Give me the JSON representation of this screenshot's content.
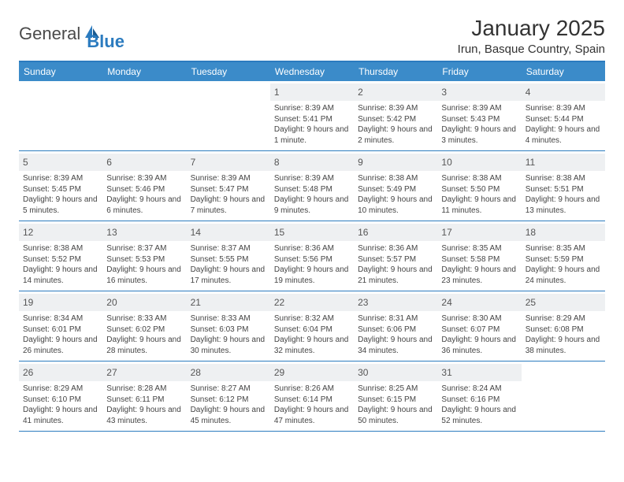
{
  "logo": {
    "general": "General",
    "blue": "Blue"
  },
  "title": "January 2025",
  "location": "Irun, Basque Country, Spain",
  "colors": {
    "header_bg": "#3b8bc9",
    "border": "#2b7bbf",
    "daynum_bg": "#eef0f2",
    "text": "#444444"
  },
  "weekdays": [
    "Sunday",
    "Monday",
    "Tuesday",
    "Wednesday",
    "Thursday",
    "Friday",
    "Saturday"
  ],
  "weeks": [
    [
      {
        "day": "",
        "sunrise": "",
        "sunset": "",
        "daylight": ""
      },
      {
        "day": "",
        "sunrise": "",
        "sunset": "",
        "daylight": ""
      },
      {
        "day": "",
        "sunrise": "",
        "sunset": "",
        "daylight": ""
      },
      {
        "day": "1",
        "sunrise": "Sunrise: 8:39 AM",
        "sunset": "Sunset: 5:41 PM",
        "daylight": "Daylight: 9 hours and 1 minute."
      },
      {
        "day": "2",
        "sunrise": "Sunrise: 8:39 AM",
        "sunset": "Sunset: 5:42 PM",
        "daylight": "Daylight: 9 hours and 2 minutes."
      },
      {
        "day": "3",
        "sunrise": "Sunrise: 8:39 AM",
        "sunset": "Sunset: 5:43 PM",
        "daylight": "Daylight: 9 hours and 3 minutes."
      },
      {
        "day": "4",
        "sunrise": "Sunrise: 8:39 AM",
        "sunset": "Sunset: 5:44 PM",
        "daylight": "Daylight: 9 hours and 4 minutes."
      }
    ],
    [
      {
        "day": "5",
        "sunrise": "Sunrise: 8:39 AM",
        "sunset": "Sunset: 5:45 PM",
        "daylight": "Daylight: 9 hours and 5 minutes."
      },
      {
        "day": "6",
        "sunrise": "Sunrise: 8:39 AM",
        "sunset": "Sunset: 5:46 PM",
        "daylight": "Daylight: 9 hours and 6 minutes."
      },
      {
        "day": "7",
        "sunrise": "Sunrise: 8:39 AM",
        "sunset": "Sunset: 5:47 PM",
        "daylight": "Daylight: 9 hours and 7 minutes."
      },
      {
        "day": "8",
        "sunrise": "Sunrise: 8:39 AM",
        "sunset": "Sunset: 5:48 PM",
        "daylight": "Daylight: 9 hours and 9 minutes."
      },
      {
        "day": "9",
        "sunrise": "Sunrise: 8:38 AM",
        "sunset": "Sunset: 5:49 PM",
        "daylight": "Daylight: 9 hours and 10 minutes."
      },
      {
        "day": "10",
        "sunrise": "Sunrise: 8:38 AM",
        "sunset": "Sunset: 5:50 PM",
        "daylight": "Daylight: 9 hours and 11 minutes."
      },
      {
        "day": "11",
        "sunrise": "Sunrise: 8:38 AM",
        "sunset": "Sunset: 5:51 PM",
        "daylight": "Daylight: 9 hours and 13 minutes."
      }
    ],
    [
      {
        "day": "12",
        "sunrise": "Sunrise: 8:38 AM",
        "sunset": "Sunset: 5:52 PM",
        "daylight": "Daylight: 9 hours and 14 minutes."
      },
      {
        "day": "13",
        "sunrise": "Sunrise: 8:37 AM",
        "sunset": "Sunset: 5:53 PM",
        "daylight": "Daylight: 9 hours and 16 minutes."
      },
      {
        "day": "14",
        "sunrise": "Sunrise: 8:37 AM",
        "sunset": "Sunset: 5:55 PM",
        "daylight": "Daylight: 9 hours and 17 minutes."
      },
      {
        "day": "15",
        "sunrise": "Sunrise: 8:36 AM",
        "sunset": "Sunset: 5:56 PM",
        "daylight": "Daylight: 9 hours and 19 minutes."
      },
      {
        "day": "16",
        "sunrise": "Sunrise: 8:36 AM",
        "sunset": "Sunset: 5:57 PM",
        "daylight": "Daylight: 9 hours and 21 minutes."
      },
      {
        "day": "17",
        "sunrise": "Sunrise: 8:35 AM",
        "sunset": "Sunset: 5:58 PM",
        "daylight": "Daylight: 9 hours and 23 minutes."
      },
      {
        "day": "18",
        "sunrise": "Sunrise: 8:35 AM",
        "sunset": "Sunset: 5:59 PM",
        "daylight": "Daylight: 9 hours and 24 minutes."
      }
    ],
    [
      {
        "day": "19",
        "sunrise": "Sunrise: 8:34 AM",
        "sunset": "Sunset: 6:01 PM",
        "daylight": "Daylight: 9 hours and 26 minutes."
      },
      {
        "day": "20",
        "sunrise": "Sunrise: 8:33 AM",
        "sunset": "Sunset: 6:02 PM",
        "daylight": "Daylight: 9 hours and 28 minutes."
      },
      {
        "day": "21",
        "sunrise": "Sunrise: 8:33 AM",
        "sunset": "Sunset: 6:03 PM",
        "daylight": "Daylight: 9 hours and 30 minutes."
      },
      {
        "day": "22",
        "sunrise": "Sunrise: 8:32 AM",
        "sunset": "Sunset: 6:04 PM",
        "daylight": "Daylight: 9 hours and 32 minutes."
      },
      {
        "day": "23",
        "sunrise": "Sunrise: 8:31 AM",
        "sunset": "Sunset: 6:06 PM",
        "daylight": "Daylight: 9 hours and 34 minutes."
      },
      {
        "day": "24",
        "sunrise": "Sunrise: 8:30 AM",
        "sunset": "Sunset: 6:07 PM",
        "daylight": "Daylight: 9 hours and 36 minutes."
      },
      {
        "day": "25",
        "sunrise": "Sunrise: 8:29 AM",
        "sunset": "Sunset: 6:08 PM",
        "daylight": "Daylight: 9 hours and 38 minutes."
      }
    ],
    [
      {
        "day": "26",
        "sunrise": "Sunrise: 8:29 AM",
        "sunset": "Sunset: 6:10 PM",
        "daylight": "Daylight: 9 hours and 41 minutes."
      },
      {
        "day": "27",
        "sunrise": "Sunrise: 8:28 AM",
        "sunset": "Sunset: 6:11 PM",
        "daylight": "Daylight: 9 hours and 43 minutes."
      },
      {
        "day": "28",
        "sunrise": "Sunrise: 8:27 AM",
        "sunset": "Sunset: 6:12 PM",
        "daylight": "Daylight: 9 hours and 45 minutes."
      },
      {
        "day": "29",
        "sunrise": "Sunrise: 8:26 AM",
        "sunset": "Sunset: 6:14 PM",
        "daylight": "Daylight: 9 hours and 47 minutes."
      },
      {
        "day": "30",
        "sunrise": "Sunrise: 8:25 AM",
        "sunset": "Sunset: 6:15 PM",
        "daylight": "Daylight: 9 hours and 50 minutes."
      },
      {
        "day": "31",
        "sunrise": "Sunrise: 8:24 AM",
        "sunset": "Sunset: 6:16 PM",
        "daylight": "Daylight: 9 hours and 52 minutes."
      },
      {
        "day": "",
        "sunrise": "",
        "sunset": "",
        "daylight": ""
      }
    ]
  ]
}
